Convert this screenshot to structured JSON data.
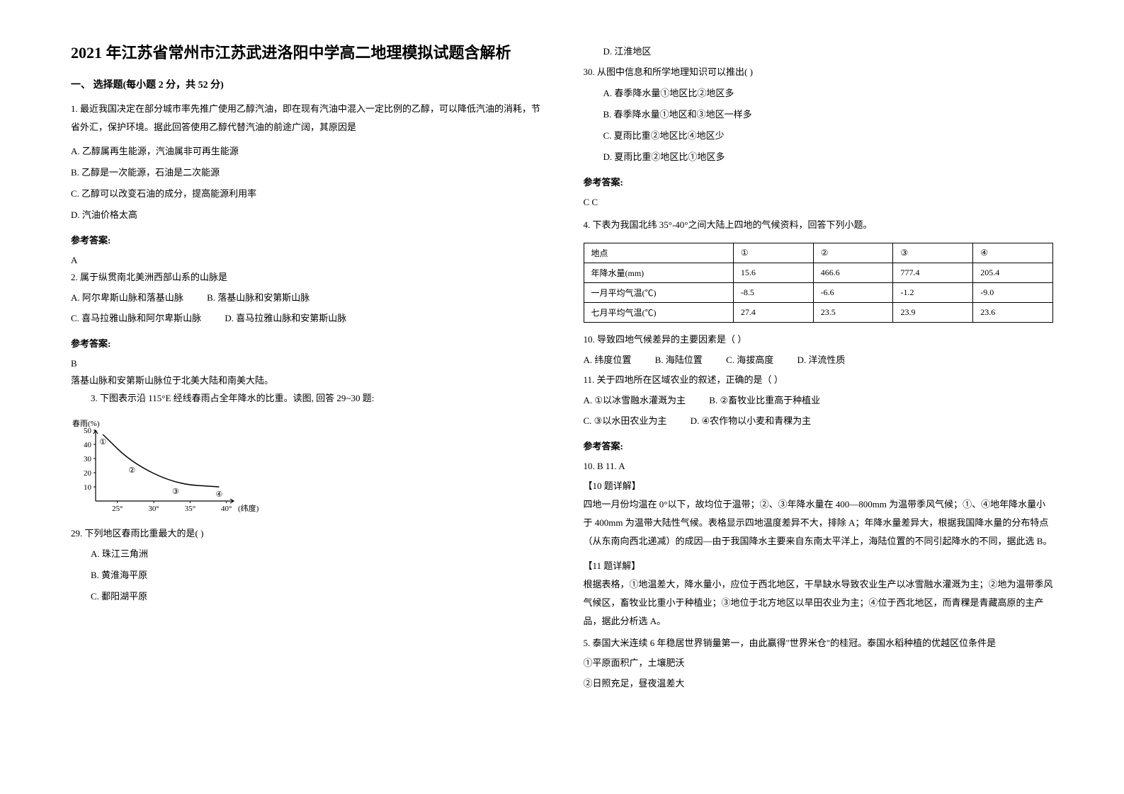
{
  "title": "2021 年江苏省常州市江苏武进洛阳中学高二地理模拟试题含解析",
  "section1": "一、 选择题(每小题 2 分，共 52 分)",
  "q1": {
    "stem": "1. 最近我国决定在部分城市率先推广使用乙醇汽油，即在现有汽油中混入一定比例的乙醇，可以降低汽油的消耗，节省外汇，保护环境。据此回答使用乙醇代替汽油的前途广阔，其原因是",
    "A": "A. 乙醇属再生能源，汽油属非可再生能源",
    "B": "B. 乙醇是一次能源，石油是二次能源",
    "C": "C. 乙醇可以改变石油的成分，提高能源利用率",
    "D": "D. 汽油价格太高",
    "answer_label": "参考答案:",
    "answer": "A"
  },
  "q2": {
    "stem": "2. 属于纵贯南北美洲西部山系的山脉是",
    "A": "A.  阿尔卑斯山脉和落基山脉",
    "B": "B.  落基山脉和安第斯山脉",
    "C": "C.  喜马拉雅山脉和阿尔卑斯山脉",
    "D": "D.  喜马拉雅山脉和安第斯山脉",
    "answer_label": "参考答案:",
    "answer": "B",
    "explain": "落基山脉和安第斯山脉位于北美大陆和南美大陆。"
  },
  "q3": {
    "stem": "3. 下图表示沿 115°E 经线春雨占全年降水的比重。读图, 回答 29~30 题:",
    "chart": {
      "type": "line",
      "ylabel": "春雨(%)",
      "xlabel": "(纬度)",
      "ylim": [
        0,
        50
      ],
      "ytick_step": 10,
      "xticks": [
        "25°",
        "30°",
        "35°",
        "40°"
      ],
      "points_labels": [
        "①",
        "②",
        "③",
        "④"
      ],
      "x_values": [
        23,
        27,
        33,
        39
      ],
      "y_values": [
        47,
        27,
        12,
        10
      ],
      "line_color": "#000000",
      "background_color": "#ffffff",
      "axis_color": "#000000",
      "label_fontsize": 11
    }
  },
  "q29": {
    "stem": "29. 下列地区春雨比重最大的是(      )",
    "A": "A. 珠江三角洲",
    "B": "B. 黄淮海平原",
    "C": "C. 鄱阳湖平原",
    "D": "D. 江淮地区"
  },
  "q30": {
    "stem": "30. 从图中信息和所学地理知识可以推出(      )",
    "A": "A. 春季降水量①地区比②地区多",
    "B": "B. 春季降水量①地区和③地区一样多",
    "C": "C. 夏雨比重②地区比④地区少",
    "D": "D. 夏雨比重②地区比①地区多",
    "answer_label": "参考答案:",
    "answer": "C  C"
  },
  "q4": {
    "stem": "4. 下表为我国北纬 35°-40°之间大陆上四地的气候资料，回答下列小题。",
    "table": {
      "headers": [
        "地点",
        "①",
        "②",
        "③",
        "④"
      ],
      "rows": [
        [
          "年降水量(mm)",
          "15.6",
          "466.6",
          "777.4",
          "205.4"
        ],
        [
          "一月平均气温(℃)",
          "-8.5",
          "-6.6",
          "-1.2",
          "-9.0"
        ],
        [
          "七月平均气温(℃)",
          "27.4",
          "23.5",
          "23.9",
          "23.6"
        ]
      ],
      "border_color": "#000000",
      "font_size": 12
    }
  },
  "q10": {
    "stem": "10.  导致四地气候差异的主要因素是（        ）",
    "A": "A.  纬度位置",
    "B": "B.  海陆位置",
    "C": "C.  海拔高度",
    "D": "D.  洋流性质"
  },
  "q11": {
    "stem": "11.  关于四地所在区域农业的叙述，正确的是（         ）",
    "A": "A.  ①以冰雪融水灌溉为主",
    "B": "B.  ②畜牧业比重高于种植业",
    "C": "C.  ③以水田农业为主",
    "D": "D.  ④农作物以小麦和青稞为主",
    "answer_label": "参考答案:",
    "answer": "10.  B          11.  A",
    "explain10_label": "【10 题详解】",
    "explain10": "四地一月份均温在 0°以下，故均位于温带；②、③年降水量在 400—800mm 为温带季风气候；①、④地年降水量小于 400mm 为温带大陆性气候。表格显示四地温度差异不大，排除 A；年降水量差异大，根据我国降水量的分布特点（从东南向西北递减）的成因—由于我国降水主要来自东南太平洋上，海陆位置的不同引起降水的不同，据此选 B。",
    "explain11_label": "【11 题详解】",
    "explain11": "根据表格，①地温差大，降水量小，应位于西北地区，干旱缺水导致农业生产以冰雪融水灌溉为主；②地为温带季风气候区，畜牧业比重小于种植业；③地位于北方地区以旱田农业为主；④位于西北地区，而青稞是青藏高原的主产品，据此分析选 A。"
  },
  "q5": {
    "stem": "5. 泰国大米连续 6 年稳居世界销量第一，由此赢得\"世界米仓\"的桂冠。泰国水稻种植的优越区位条件是",
    "line1": "①平原面积广，土壤肥沃",
    "line2": " ②日照充足，昼夜温差大"
  }
}
